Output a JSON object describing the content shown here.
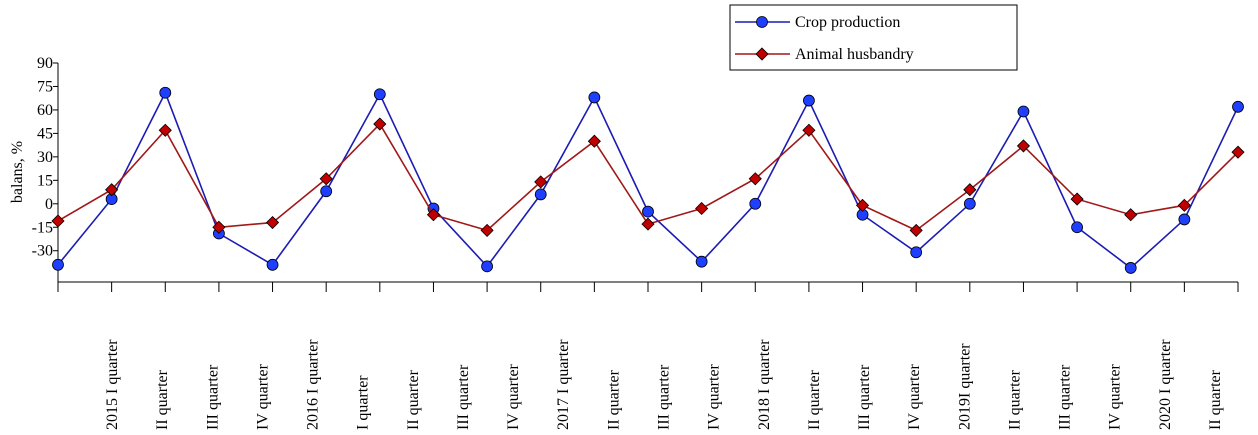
{
  "chart_data": {
    "type": "line",
    "y_label": "balans, %",
    "categories": [
      "2015 I quarter",
      "II quarter",
      "III quarter",
      "IV quarter",
      "2016 I quarter",
      "I quarter",
      "II quarter",
      "III quarter",
      "IV quarter",
      "2017 I quarter",
      "II quarter",
      "III quarter",
      "IV quarter",
      "2018 I quarter",
      "II quarter",
      "III quarter",
      "IV quarter",
      "2019I quarter",
      "II quarter",
      "III quarter",
      "IV quarter",
      "2020 I quarter",
      "II quarter"
    ],
    "series": [
      {
        "name": "Crop production",
        "color": "#1c1cb4",
        "marker": "circle",
        "marker_color": "#1f3fff",
        "values": [
          -39,
          3,
          71,
          -19,
          -39,
          8,
          70,
          -3,
          -40,
          6,
          68,
          -5,
          -37,
          0,
          66,
          -7,
          -31,
          0,
          59,
          -15,
          -41,
          -10,
          62
        ]
      },
      {
        "name": "Animal husbandry",
        "color": "#a01818",
        "marker": "diamond",
        "marker_color": "#c00000",
        "values": [
          -11,
          9,
          47,
          -15,
          -12,
          16,
          51,
          -7,
          -17,
          14,
          40,
          -13,
          -3,
          16,
          47,
          -1,
          -17,
          9,
          37,
          3,
          -7,
          -1,
          33
        ]
      }
    ],
    "ylim": [
      -50,
      90
    ],
    "yticks": [
      90,
      75,
      60,
      45,
      30,
      15,
      0,
      -15,
      -30
    ],
    "grid": false
  }
}
